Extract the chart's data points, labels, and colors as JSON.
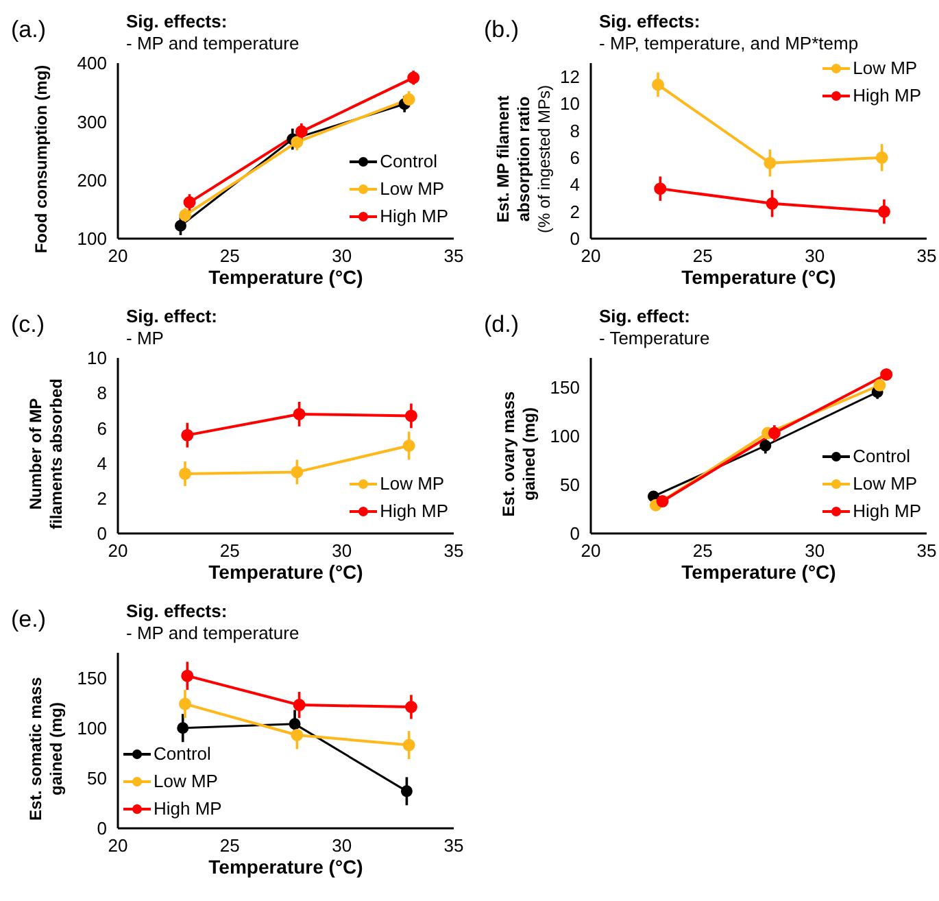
{
  "chart_data": [
    {
      "type": "line",
      "title": "(a.)",
      "annotations": [
        "Sig. effects:",
        "- MP and temperature"
      ],
      "xlabel": "Temperature (°C)",
      "ylabel": "Food consumption (mg)",
      "xlim": [
        20,
        35
      ],
      "xticks": [
        20,
        25,
        30,
        35
      ],
      "ylim": [
        100,
        400
      ],
      "yticks": [
        100,
        200,
        300,
        400
      ],
      "legend": "bottom right",
      "marker": "circle",
      "series": [
        {
          "name": "Control",
          "color": "#000000",
          "x": [
            22.8,
            27.8,
            32.8
          ],
          "values": [
            122,
            270,
            330
          ],
          "errors": [
            16,
            18,
            14
          ]
        },
        {
          "name": "Low MP",
          "color": "#ffb81c",
          "x": [
            23,
            28,
            33
          ],
          "values": [
            140,
            265,
            338
          ],
          "errors": [
            12,
            14,
            14
          ]
        },
        {
          "name": "High MP",
          "color": "#ff0000",
          "x": [
            23.2,
            28.2,
            33.2
          ],
          "values": [
            162,
            283,
            375
          ],
          "errors": [
            14,
            14,
            12
          ]
        }
      ]
    },
    {
      "type": "line",
      "title": "(b.)",
      "annotations": [
        "Sig. effects:",
        "- MP, temperature, and MP*temp"
      ],
      "xlabel": "Temperature (°C)",
      "ylabel": "Est. MP filament\nabsorption ratio\n(% of ingested MPs)",
      "xlim": [
        20,
        35
      ],
      "xticks": [
        20,
        25,
        30,
        35
      ],
      "ylim": [
        0,
        13
      ],
      "yticks": [
        0,
        2,
        4,
        6,
        8,
        10,
        12
      ],
      "legend": "top right",
      "marker": "circle",
      "series": [
        {
          "name": "Low MP",
          "color": "#ffb81c",
          "x": [
            23,
            28,
            33
          ],
          "values": [
            11.4,
            5.6,
            6.0
          ],
          "errors": [
            0.9,
            1.0,
            1.0
          ]
        },
        {
          "name": "High MP",
          "color": "#ff0000",
          "x": [
            23.1,
            28.1,
            33.1
          ],
          "values": [
            3.7,
            2.6,
            2.0
          ],
          "errors": [
            0.9,
            1.0,
            0.9
          ]
        }
      ]
    },
    {
      "type": "line",
      "title": "(c.)",
      "annotations": [
        "Sig. effect:",
        "- MP"
      ],
      "xlabel": "Temperature (°C)",
      "ylabel": "Number of MP\nfilaments absorbed",
      "xlim": [
        20,
        35
      ],
      "xticks": [
        20,
        25,
        30,
        35
      ],
      "ylim": [
        0,
        10
      ],
      "yticks": [
        0,
        2,
        4,
        6,
        8,
        10
      ],
      "legend": "bottom right",
      "marker": "circle",
      "series": [
        {
          "name": "Low MP",
          "color": "#ffb81c",
          "x": [
            23,
            28,
            33
          ],
          "values": [
            3.4,
            3.5,
            5.0
          ],
          "errors": [
            0.7,
            0.7,
            0.8
          ]
        },
        {
          "name": "High MP",
          "color": "#ff0000",
          "x": [
            23.1,
            28.1,
            33.1
          ],
          "values": [
            5.6,
            6.8,
            6.7
          ],
          "errors": [
            0.7,
            0.7,
            0.7
          ]
        }
      ]
    },
    {
      "type": "line",
      "title": "(d.)",
      "annotations": [
        "Sig. effect:",
        "- Temperature"
      ],
      "xlabel": "Temperature (°C)",
      "ylabel": "Est. ovary mass\ngained (mg)",
      "xlim": [
        20,
        35
      ],
      "xticks": [
        20,
        25,
        30,
        35
      ],
      "ylim": [
        0,
        180
      ],
      "yticks": [
        0,
        50,
        100,
        150
      ],
      "legend": "bottom right",
      "marker": "circle",
      "series": [
        {
          "name": "Control",
          "color": "#000000",
          "x": [
            22.8,
            27.8,
            32.8
          ],
          "values": [
            38,
            90,
            145
          ],
          "errors": [
            4,
            8,
            7
          ]
        },
        {
          "name": "Low MP",
          "color": "#ffb81c",
          "x": [
            22.9,
            27.9,
            32.9
          ],
          "values": [
            29,
            103,
            152
          ],
          "errors": [
            5,
            6,
            8
          ]
        },
        {
          "name": "High MP",
          "color": "#ff0000",
          "x": [
            23.2,
            28.2,
            33.2
          ],
          "values": [
            33,
            103,
            163
          ],
          "errors": [
            5,
            8,
            6
          ]
        }
      ]
    },
    {
      "type": "line",
      "title": "(e.)",
      "annotations": [
        "Sig. effects:",
        "- MP and temperature"
      ],
      "xlabel": "Temperature (°C)",
      "ylabel": "Est. somatic mass\ngained (mg)",
      "xlim": [
        20,
        35
      ],
      "xticks": [
        20,
        25,
        30,
        35
      ],
      "ylim": [
        0,
        175
      ],
      "yticks": [
        0,
        50,
        100,
        150
      ],
      "legend": "bottom left",
      "marker": "circle",
      "series": [
        {
          "name": "Control",
          "color": "#000000",
          "x": [
            22.9,
            27.9,
            32.9
          ],
          "values": [
            100,
            104,
            37
          ],
          "errors": [
            14,
            14,
            14
          ]
        },
        {
          "name": "Low MP",
          "color": "#ffb81c",
          "x": [
            23,
            28,
            33
          ],
          "values": [
            124,
            93,
            83
          ],
          "errors": [
            14,
            14,
            14
          ]
        },
        {
          "name": "High MP",
          "color": "#ff0000",
          "x": [
            23.1,
            28.1,
            33.1
          ],
          "values": [
            152,
            123,
            121
          ],
          "errors": [
            14,
            13,
            12
          ]
        }
      ]
    }
  ]
}
